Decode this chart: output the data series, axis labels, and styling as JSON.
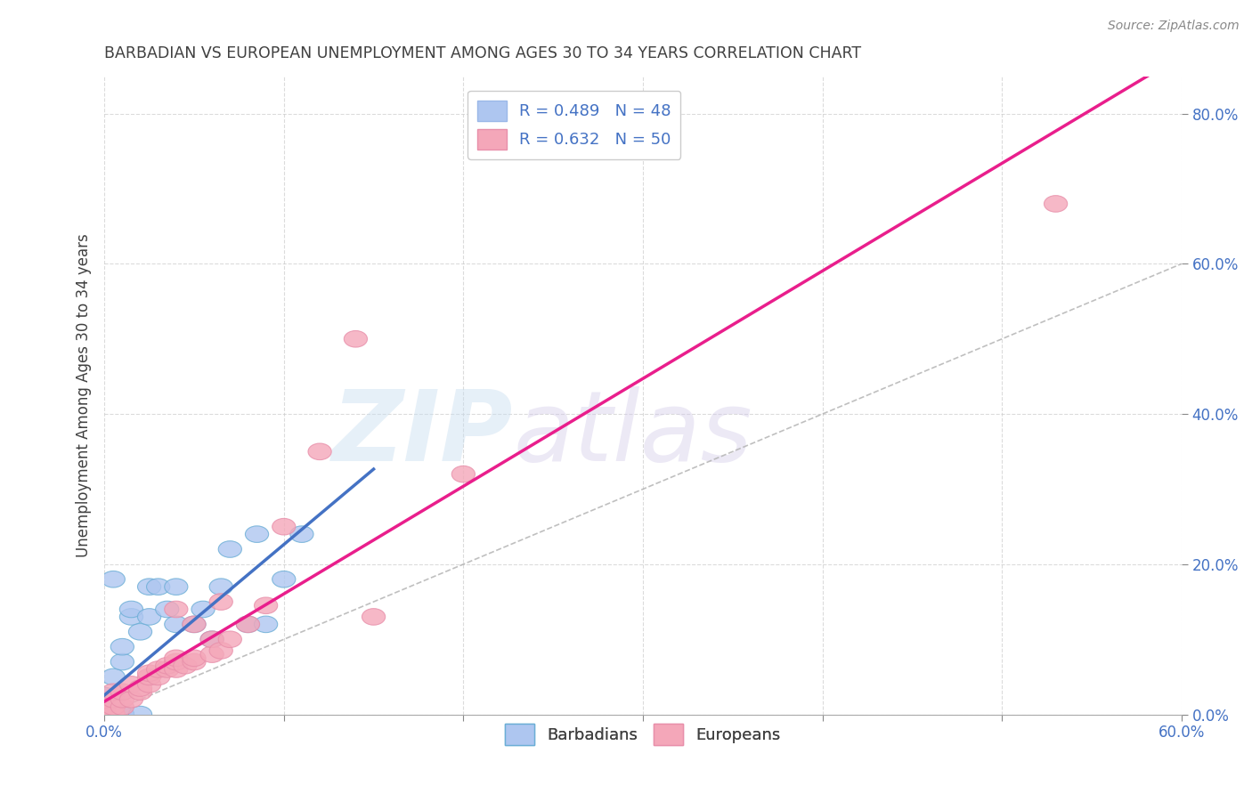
{
  "title": "BARBADIAN VS EUROPEAN UNEMPLOYMENT AMONG AGES 30 TO 34 YEARS CORRELATION CHART",
  "source": "Source: ZipAtlas.com",
  "ylabel": "Unemployment Among Ages 30 to 34 years",
  "xlim": [
    0.0,
    0.6
  ],
  "ylim": [
    0.0,
    0.85
  ],
  "yticks": [
    0.0,
    0.2,
    0.4,
    0.6,
    0.8
  ],
  "ytick_labels": [
    "0.0%",
    "20.0%",
    "40.0%",
    "60.0%",
    "80.0%"
  ],
  "xticks": [
    0.0,
    0.1,
    0.2,
    0.3,
    0.4,
    0.5,
    0.6
  ],
  "watermark_zip": "ZIP",
  "watermark_atlas": "atlas",
  "legend_entries": [
    {
      "label": "R = 0.489   N = 48",
      "color": "#aec6f0"
    },
    {
      "label": "R = 0.632   N = 50",
      "color": "#f4a7b9"
    }
  ],
  "barbadian_face_color": "#aec6f0",
  "barbadian_edge_color": "#6baed6",
  "european_face_color": "#f4a7b9",
  "european_edge_color": "#e88faa",
  "barbadian_line_color": "#4472c4",
  "european_line_color": "#e91e8c",
  "diag_line_color": "#b0b0b0",
  "background_color": "#ffffff",
  "grid_color": "#cccccc",
  "title_color": "#404040",
  "axis_label_color": "#4472c4",
  "barbadians_x": [
    0.0,
    0.0,
    0.0,
    0.0,
    0.0,
    0.0,
    0.0,
    0.0,
    0.0,
    0.0,
    0.0,
    0.0,
    0.0,
    0.0,
    0.0,
    0.0,
    0.0,
    0.0,
    0.0,
    0.0,
    0.005,
    0.005,
    0.005,
    0.01,
    0.01,
    0.01,
    0.01,
    0.01,
    0.015,
    0.015,
    0.02,
    0.02,
    0.025,
    0.025,
    0.03,
    0.035,
    0.04,
    0.04,
    0.05,
    0.055,
    0.06,
    0.065,
    0.07,
    0.08,
    0.085,
    0.09,
    0.1,
    0.11
  ],
  "barbadians_y": [
    0.0,
    0.0,
    0.0,
    0.0,
    0.0,
    0.0,
    0.0,
    0.0,
    0.0,
    0.0,
    0.0,
    0.0,
    0.005,
    0.005,
    0.01,
    0.01,
    0.015,
    0.015,
    0.02,
    0.025,
    0.0,
    0.05,
    0.18,
    0.0,
    0.0,
    0.0,
    0.07,
    0.09,
    0.13,
    0.14,
    0.0,
    0.11,
    0.13,
    0.17,
    0.17,
    0.14,
    0.12,
    0.17,
    0.12,
    0.14,
    0.1,
    0.17,
    0.22,
    0.12,
    0.24,
    0.12,
    0.18,
    0.24
  ],
  "europeans_x": [
    0.0,
    0.0,
    0.0,
    0.0,
    0.0,
    0.0,
    0.0,
    0.0,
    0.0,
    0.0,
    0.005,
    0.005,
    0.005,
    0.005,
    0.005,
    0.01,
    0.01,
    0.01,
    0.015,
    0.015,
    0.02,
    0.02,
    0.025,
    0.025,
    0.025,
    0.03,
    0.03,
    0.035,
    0.035,
    0.04,
    0.04,
    0.04,
    0.04,
    0.045,
    0.05,
    0.05,
    0.05,
    0.06,
    0.06,
    0.065,
    0.065,
    0.07,
    0.08,
    0.09,
    0.1,
    0.12,
    0.14,
    0.15,
    0.2,
    0.53
  ],
  "europeans_y": [
    0.0,
    0.0,
    0.0,
    0.0,
    0.0,
    0.0,
    0.0,
    0.0,
    0.0,
    0.01,
    0.0,
    0.0,
    0.01,
    0.02,
    0.03,
    0.01,
    0.02,
    0.03,
    0.02,
    0.04,
    0.03,
    0.035,
    0.04,
    0.05,
    0.055,
    0.05,
    0.06,
    0.06,
    0.065,
    0.06,
    0.07,
    0.075,
    0.14,
    0.065,
    0.07,
    0.075,
    0.12,
    0.08,
    0.1,
    0.085,
    0.15,
    0.1,
    0.12,
    0.145,
    0.25,
    0.35,
    0.5,
    0.13,
    0.32,
    0.68
  ]
}
